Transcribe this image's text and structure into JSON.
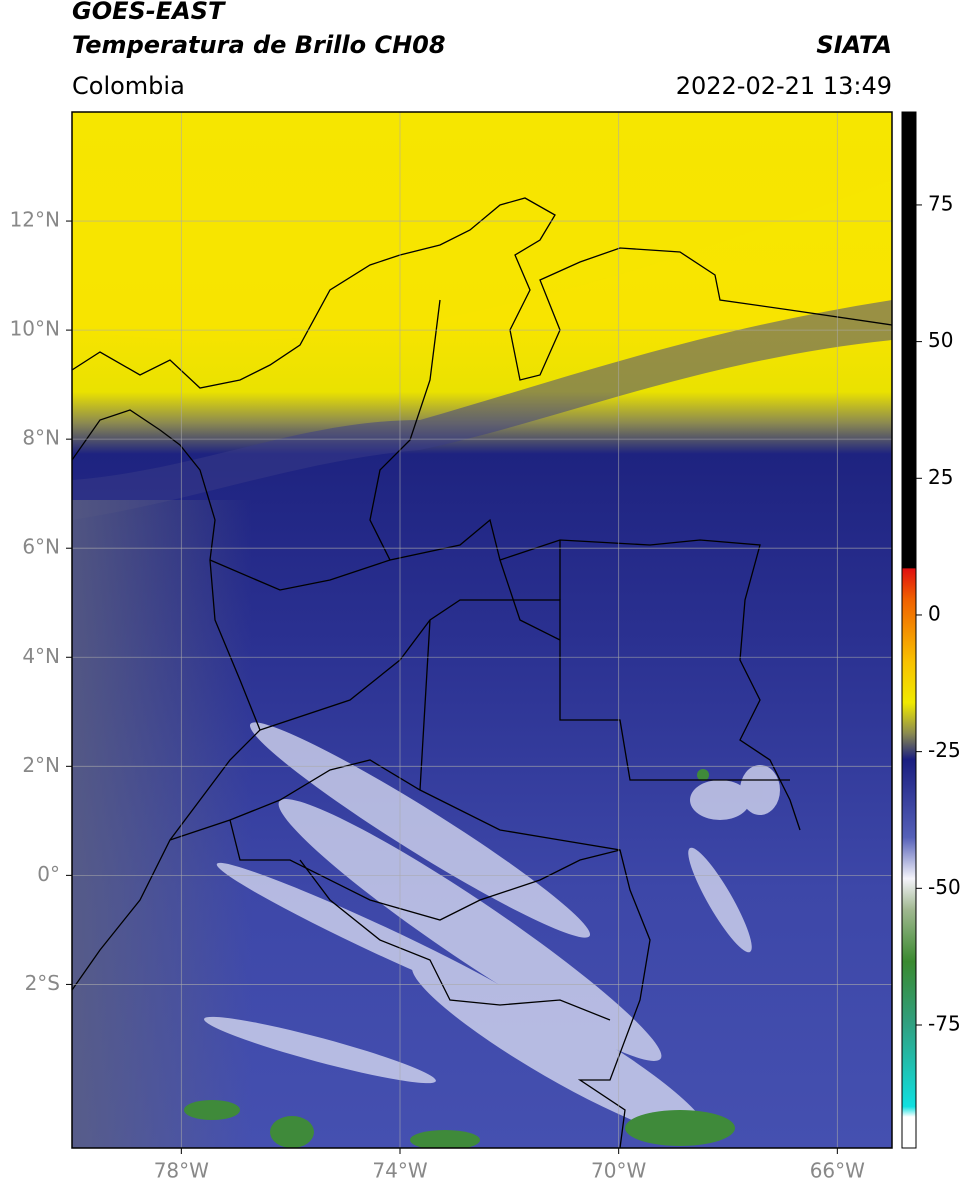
{
  "header": {
    "title": "GOES-EAST",
    "subtitle": "Temperatura de Brillo CH08",
    "source": "SIATA",
    "region": "Colombia",
    "datetime": "2022-02-21 13:49"
  },
  "map": {
    "lon_range": [
      -80,
      -65
    ],
    "lat_range": [
      -5,
      14
    ],
    "xticks": [
      {
        "value": -78,
        "label": "78°W"
      },
      {
        "value": -74,
        "label": "74°W"
      },
      {
        "value": -70,
        "label": "70°W"
      },
      {
        "value": -66,
        "label": "66°W"
      }
    ],
    "yticks": [
      {
        "value": 12,
        "label": "12°N"
      },
      {
        "value": 10,
        "label": "10°N"
      },
      {
        "value": 8,
        "label": "8°N"
      },
      {
        "value": 6,
        "label": "6°N"
      },
      {
        "value": 4,
        "label": "4°N"
      },
      {
        "value": 2,
        "label": "2°N"
      },
      {
        "value": 0,
        "label": "0°"
      },
      {
        "value": -2,
        "label": "2°S"
      }
    ]
  },
  "colorbar": {
    "range": [
      -97.5,
      92
    ],
    "ticks": [
      75,
      50,
      25,
      0,
      -25,
      -50,
      -75
    ]
  }
}
